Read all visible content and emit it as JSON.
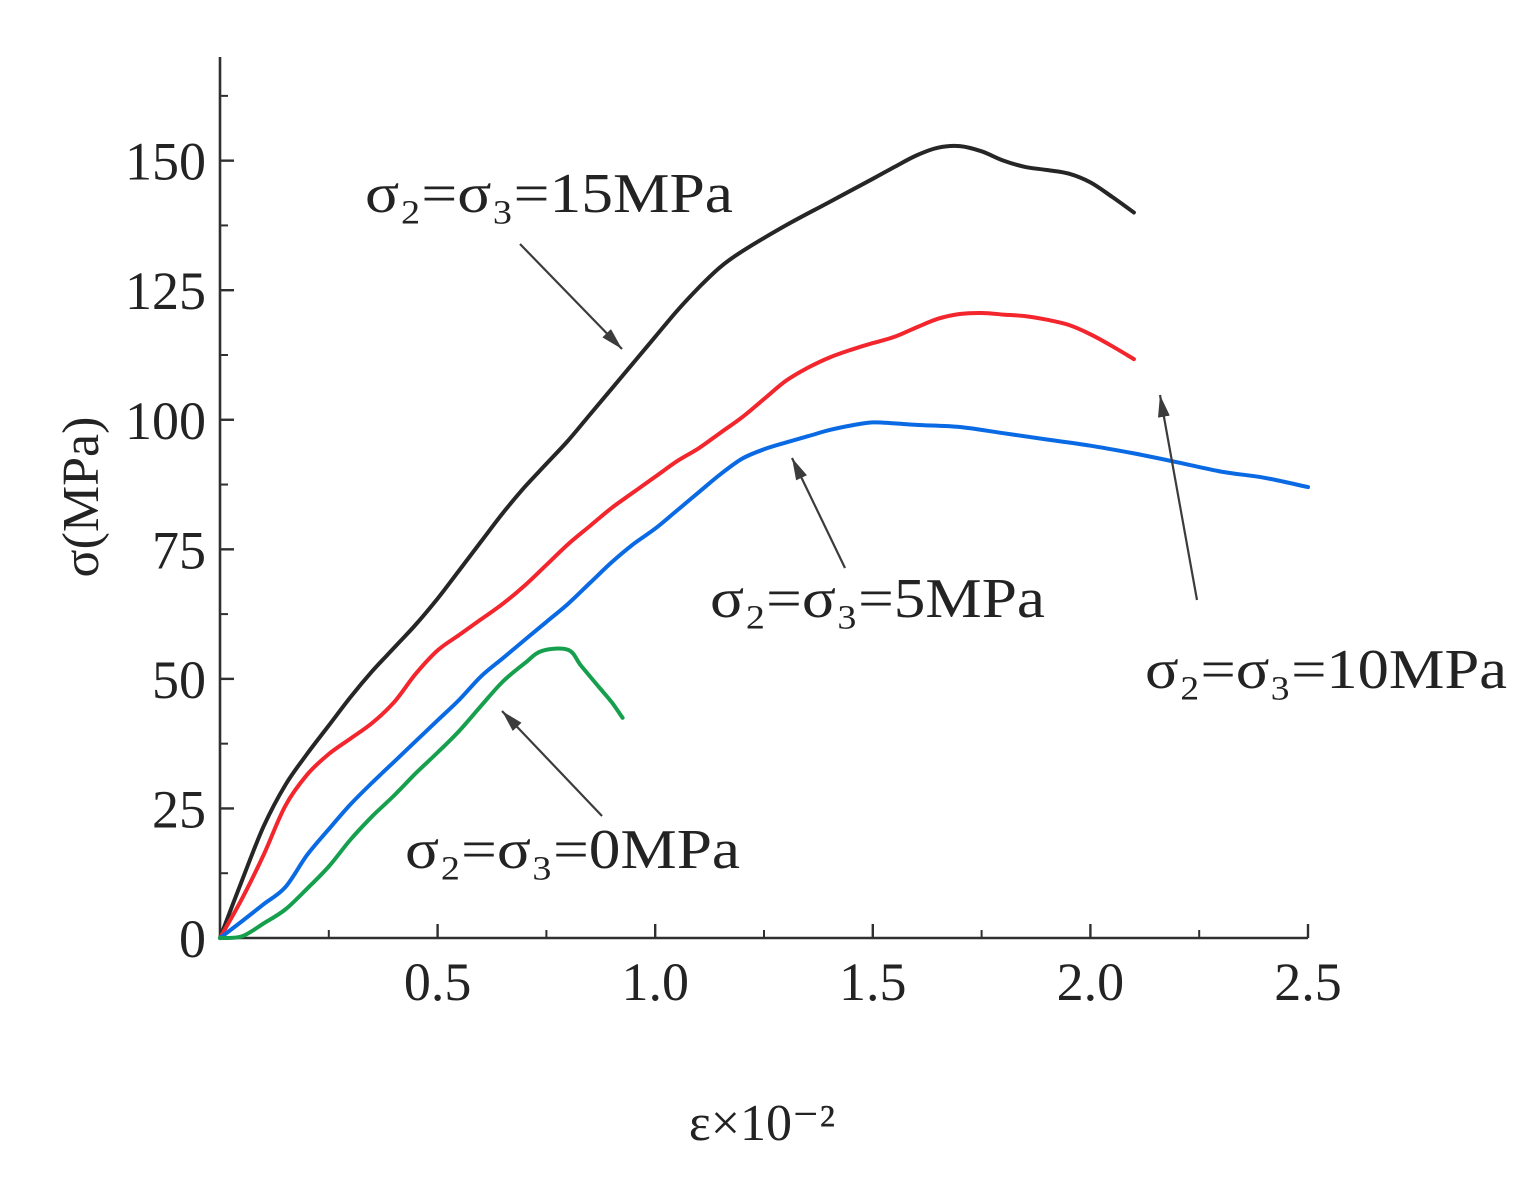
{
  "chart_data": {
    "type": "line",
    "xlabel": "ε×10⁻²",
    "ylabel": "σ(MPa)",
    "xlim": [
      0,
      2.5
    ],
    "ylim": [
      0,
      170
    ],
    "xticks": [
      "0.5",
      "1.0",
      "1.5",
      "2.0",
      "2.5"
    ],
    "yticks": [
      "0",
      "25",
      "50",
      "75",
      "100",
      "125",
      "150"
    ],
    "grid": false,
    "series": [
      {
        "name": "σ₂=σ₃=15MPa",
        "color": "#262626",
        "x": [
          0,
          0.05,
          0.1,
          0.15,
          0.2,
          0.25,
          0.3,
          0.35,
          0.4,
          0.45,
          0.5,
          0.55,
          0.6,
          0.65,
          0.7,
          0.75,
          0.8,
          0.85,
          0.9,
          0.95,
          1.0,
          1.05,
          1.1,
          1.15,
          1.2,
          1.3,
          1.4,
          1.5,
          1.55,
          1.6,
          1.65,
          1.7,
          1.75,
          1.8,
          1.85,
          1.9,
          1.95,
          2.0,
          2.05,
          2.1
        ],
        "y": [
          0,
          11,
          21.5,
          29.5,
          35.5,
          41,
          46.5,
          51.5,
          56,
          60.5,
          65.5,
          71,
          76.5,
          82,
          87,
          91.5,
          96,
          101,
          106,
          111,
          116,
          121,
          125.5,
          129.5,
          132.5,
          137.5,
          142,
          146.5,
          148.8,
          151,
          152.5,
          152.8,
          151.8,
          150,
          148.8,
          148.2,
          147.5,
          145.8,
          143,
          140
        ]
      },
      {
        "name": "σ₂=σ₃=10MPa",
        "color": "#f2262c",
        "x": [
          0,
          0.05,
          0.1,
          0.15,
          0.2,
          0.25,
          0.3,
          0.35,
          0.4,
          0.45,
          0.5,
          0.55,
          0.6,
          0.65,
          0.7,
          0.75,
          0.8,
          0.85,
          0.9,
          0.95,
          1.0,
          1.05,
          1.1,
          1.15,
          1.2,
          1.25,
          1.3,
          1.35,
          1.4,
          1.45,
          1.5,
          1.55,
          1.6,
          1.65,
          1.7,
          1.75,
          1.8,
          1.85,
          1.9,
          1.95,
          2.0,
          2.05,
          2.1
        ],
        "y": [
          0,
          7.5,
          16,
          25.5,
          31.5,
          35.5,
          38.5,
          41.5,
          45.5,
          51,
          55.5,
          58.5,
          61.5,
          64.5,
          68,
          72,
          76,
          79.5,
          83,
          86,
          89,
          92,
          94.5,
          97.5,
          100.5,
          104,
          107.5,
          110,
          112,
          113.5,
          114.8,
          116,
          117.8,
          119.5,
          120.4,
          120.6,
          120.3,
          120,
          119.3,
          118.3,
          116.5,
          114.2,
          111.7
        ]
      },
      {
        "name": "σ₂=σ₃=5MPa",
        "color": "#0a6ae4",
        "x": [
          0,
          0.05,
          0.1,
          0.15,
          0.2,
          0.25,
          0.3,
          0.35,
          0.4,
          0.45,
          0.5,
          0.55,
          0.6,
          0.65,
          0.7,
          0.75,
          0.8,
          0.85,
          0.9,
          0.95,
          1.0,
          1.05,
          1.1,
          1.15,
          1.2,
          1.25,
          1.3,
          1.35,
          1.4,
          1.45,
          1.5,
          1.55,
          1.6,
          1.7,
          1.8,
          1.9,
          2.0,
          2.1,
          2.2,
          2.3,
          2.4,
          2.5
        ],
        "y": [
          0,
          3.2,
          6.5,
          9.8,
          16,
          21,
          25.8,
          30,
          34,
          38,
          42,
          46,
          50.5,
          54,
          57.5,
          61,
          64.5,
          68.5,
          72.5,
          76,
          79,
          82.5,
          86,
          89.5,
          92.5,
          94.3,
          95.6,
          96.8,
          98,
          98.9,
          99.5,
          99.3,
          99,
          98.6,
          97.4,
          96.2,
          95,
          93.5,
          91.8,
          90,
          88.8,
          87
        ]
      },
      {
        "name": "σ₂=σ₃=0MPa",
        "color": "#16a04e",
        "x": [
          0,
          0.05,
          0.1,
          0.15,
          0.2,
          0.25,
          0.3,
          0.35,
          0.4,
          0.45,
          0.5,
          0.55,
          0.6,
          0.65,
          0.7,
          0.74,
          0.8,
          0.83,
          0.87,
          0.9,
          0.925
        ],
        "y": [
          0,
          0.3,
          2.8,
          5.5,
          9.5,
          13.8,
          19,
          23.5,
          27.5,
          31.8,
          35.8,
          40,
          44.8,
          49.5,
          53,
          55.4,
          55.6,
          52.5,
          48.5,
          45.5,
          42.5
        ]
      }
    ]
  },
  "colors": {
    "axis": "#303030",
    "arrow": "#3c3c3c",
    "background": "#ffffff"
  }
}
